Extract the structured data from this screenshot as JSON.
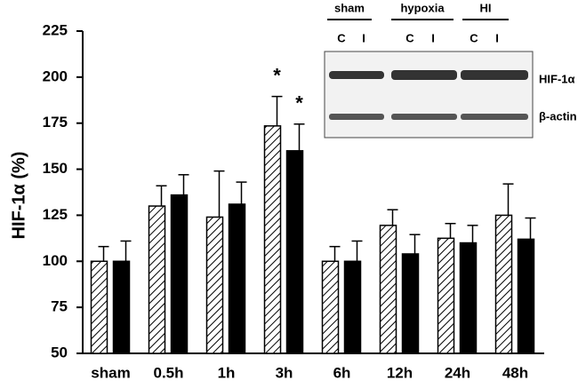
{
  "chart_data": {
    "type": "bar",
    "y_label": "HIF-1α (%)",
    "categories": [
      "sham",
      "0.5h",
      "1h",
      "3h",
      "6h",
      "12h",
      "24h",
      "48h"
    ],
    "series": [
      {
        "color": "#000000",
        "pattern": "diagonal-hatch",
        "values": [
          100,
          130,
          124,
          173.5,
          100,
          119.5,
          112.5,
          125
        ],
        "errors": [
          8,
          11,
          25,
          16,
          8,
          8.5,
          8,
          17
        ]
      },
      {
        "color": "#000000",
        "pattern": "solid",
        "values": [
          100,
          136,
          131,
          160,
          100,
          104,
          110,
          112
        ],
        "errors": [
          11,
          11,
          12,
          14.5,
          11,
          10.5,
          9.5,
          11.5
        ]
      }
    ],
    "annotations": [
      "*",
      "*"
    ],
    "ylim": [
      50,
      225
    ],
    "yticks": [
      50,
      75,
      100,
      125,
      150,
      175,
      200,
      225
    ],
    "grid": false,
    "inset": {
      "groups": [
        "sham",
        "hypoxia",
        "HI"
      ],
      "lanes": [
        "C",
        "I",
        "C",
        "I",
        "C",
        "I"
      ],
      "rows": [
        "HIF-1α",
        "β-actin"
      ]
    }
  }
}
